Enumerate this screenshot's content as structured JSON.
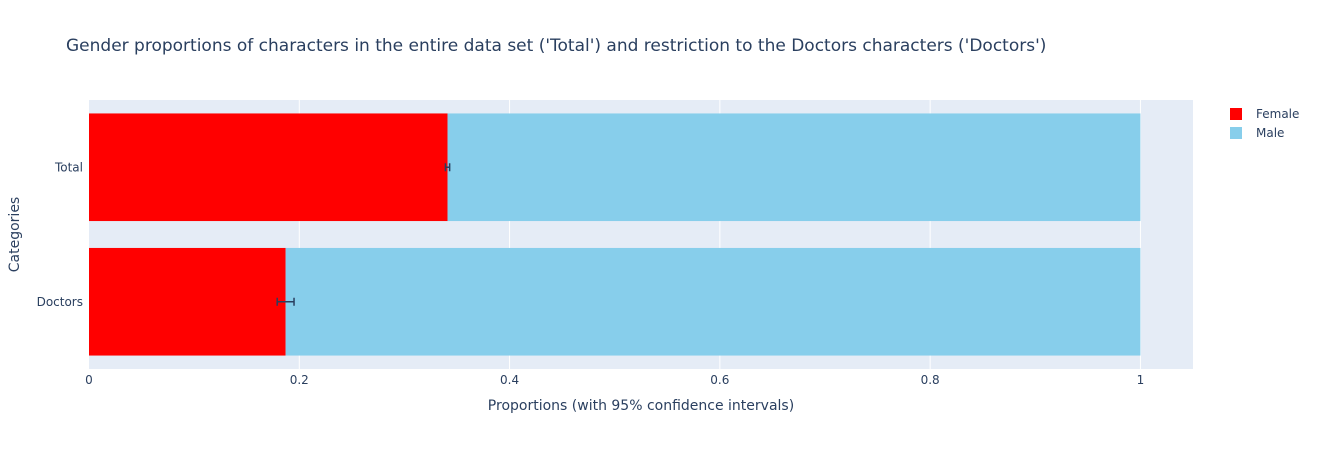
{
  "chart_data": {
    "type": "bar",
    "orientation": "horizontal",
    "barmode": "stack",
    "title": "Gender proportions of characters in the entire data set ('Total') and restriction to the Doctors characters ('Doctors')",
    "xlabel": "Proportions (with 95% confidence intervals)",
    "ylabel": "Categories",
    "xlim": [
      0,
      1.05
    ],
    "xticks": [
      0,
      0.2,
      0.4,
      0.6,
      0.8,
      1
    ],
    "xtick_labels": [
      "0",
      "0.2",
      "0.4",
      "0.6",
      "0.8",
      "1"
    ],
    "categories": [
      "Total",
      "Doctors"
    ],
    "series": [
      {
        "name": "Female",
        "color": "#ff0000",
        "values": [
          0.341,
          0.187
        ],
        "error_low": [
          0.339,
          0.179
        ],
        "error_high": [
          0.343,
          0.195
        ]
      },
      {
        "name": "Male",
        "color": "#87ceeb",
        "values": [
          0.659,
          0.813
        ]
      }
    ],
    "grid": true,
    "legend_position": "top-right",
    "plot_background": "#e5ecf6",
    "error_bar_color": "#2a3f5f"
  }
}
